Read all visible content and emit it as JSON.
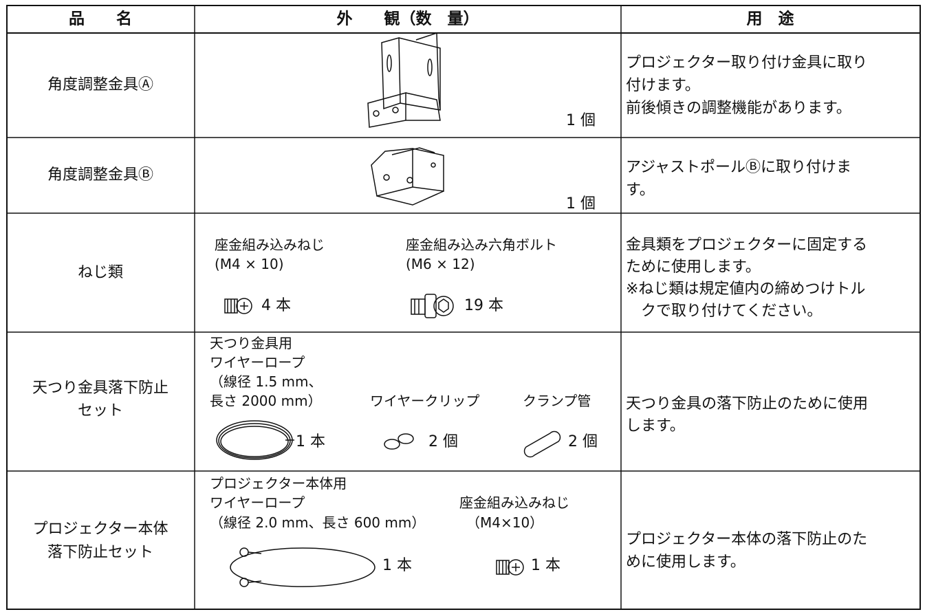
{
  "table": {
    "header": [
      "品　　名",
      "外　　観（数　量）",
      "用　途"
    ],
    "rows": [
      {
        "name": [
          "角度調整金具Ⓐ"
        ],
        "items": [
          {
            "label": [],
            "qty": "1 個"
          }
        ],
        "usage": [
          "プロジェクター取り付け金具に取り",
          "付けます。",
          "前後傾きの調整機能があります。"
        ]
      },
      {
        "name": [
          "角度調整金具Ⓑ"
        ],
        "items": [
          {
            "label": [],
            "qty": "1 個"
          }
        ],
        "usage": [
          "アジャストポールⒷに取り付けま",
          "す。"
        ]
      },
      {
        "name": [
          "ねじ類"
        ],
        "items": [
          {
            "label": [
              "座金組み込みねじ",
              "(M4 × 10)"
            ],
            "qty": "4 本"
          },
          {
            "label": [
              "座金組み込み六角ボルト",
              "(M6 × 12)"
            ],
            "qty": "19 本"
          }
        ],
        "usage": [
          "金具類をプロジェクターに固定する",
          "ために使用します。",
          "※ねじ類は規定値内の締めつけトル",
          "　クで取り付けてください。"
        ]
      },
      {
        "name": [
          "天つり金具落下防止",
          "セット"
        ],
        "items": [
          {
            "label": [
              "天つり金具用",
              "ワイヤーロープ",
              "（線径 1.5 mm、",
              "長さ 2000 mm）"
            ],
            "qty": "1 本"
          },
          {
            "label": [
              "ワイヤークリップ"
            ],
            "qty": "2 個"
          },
          {
            "label": [
              "クランプ管"
            ],
            "qty": "2 個"
          }
        ],
        "usage": [
          "天つり金具の落下防止のために使用",
          "します。"
        ]
      },
      {
        "name": [
          "プロジェクター本体",
          "落下防止セット"
        ],
        "items": [
          {
            "label": [
              "プロジェクター本体用",
              "ワイヤーロープ",
              "（線径 2.0 mm、長さ 600 mm）"
            ],
            "qty": "1 本"
          },
          {
            "label": [
              "座金組み込みねじ",
              "（M4×10）"
            ],
            "qty": "1 本"
          }
        ],
        "usage": [
          "プロジェクター本体の落下防止のた",
          "めに使用します。"
        ]
      }
    ]
  }
}
